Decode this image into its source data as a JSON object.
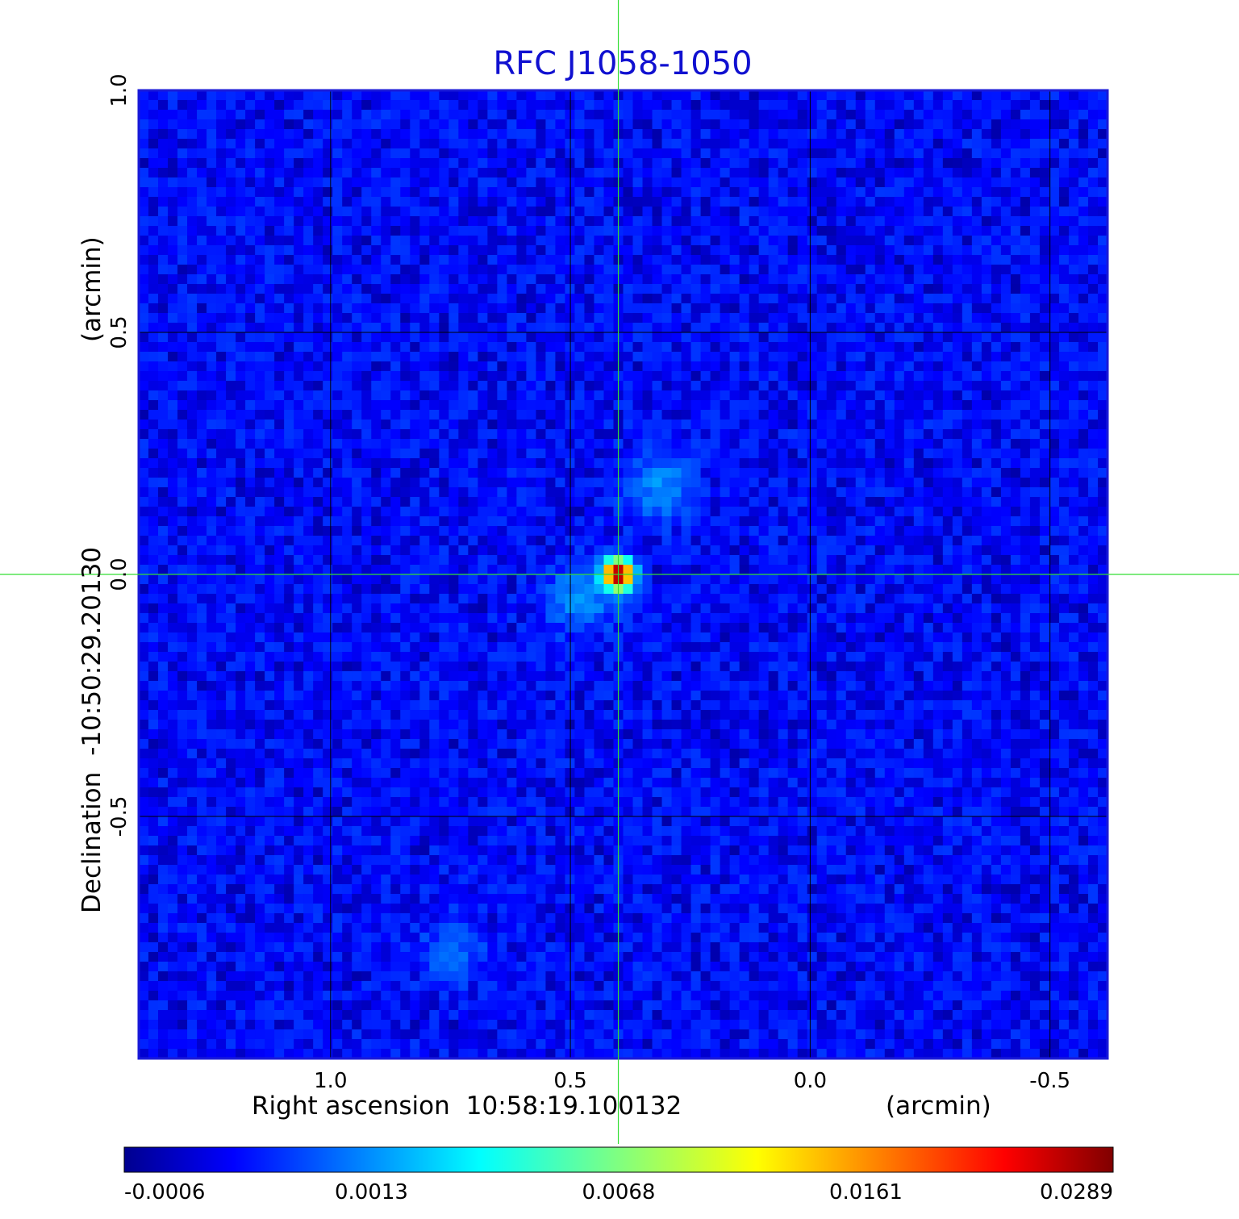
{
  "chart_data": {
    "type": "heatmap",
    "title": "RFC J1058-1050",
    "xlabel": {
      "prefix": "Right ascension",
      "center": "10:58:19.100132",
      "unit": "(arcmin)"
    },
    "ylabel": {
      "prefix": "Declination",
      "center": "-10:50:29.20130",
      "unit": "(arcmin)"
    },
    "xlim": [
      1.4,
      -0.62
    ],
    "ylim": [
      -1.0,
      1.0
    ],
    "x_ticks": [
      {
        "value": 1.0,
        "label": "1.0"
      },
      {
        "value": 0.5,
        "label": "0.5"
      },
      {
        "value": 0.0,
        "label": "0.0"
      },
      {
        "value": -0.5,
        "label": "-0.5"
      }
    ],
    "y_ticks": [
      {
        "value": 1.0,
        "label": "1.0"
      },
      {
        "value": 0.5,
        "label": "0.5"
      },
      {
        "value": 0.0,
        "label": "0.0"
      },
      {
        "value": -0.5,
        "label": "-0.5"
      }
    ],
    "grid": true,
    "grid_color": "#000000",
    "crosshair": {
      "x": 0.4,
      "y": 0.0,
      "color": "#33dd33"
    },
    "peak": {
      "x": 0.4,
      "y": 0.0,
      "value": 0.0289
    },
    "features": [
      {
        "x": 0.31,
        "y": 0.18,
        "value": 0.0016
      },
      {
        "x": 0.48,
        "y": -0.05,
        "value": 0.0017
      },
      {
        "x": 0.75,
        "y": -0.78,
        "value": 0.0009
      }
    ],
    "colorbar": {
      "colormap": "jet",
      "ticks": [
        "-0.0006",
        "0.0013",
        "0.0068",
        "0.0161",
        "0.0289"
      ],
      "range": [
        -0.0006,
        0.0289
      ]
    },
    "colors": {
      "frame": "#1a1ad8",
      "background_field": "#1c5ef0",
      "title": "#1010d0"
    }
  }
}
